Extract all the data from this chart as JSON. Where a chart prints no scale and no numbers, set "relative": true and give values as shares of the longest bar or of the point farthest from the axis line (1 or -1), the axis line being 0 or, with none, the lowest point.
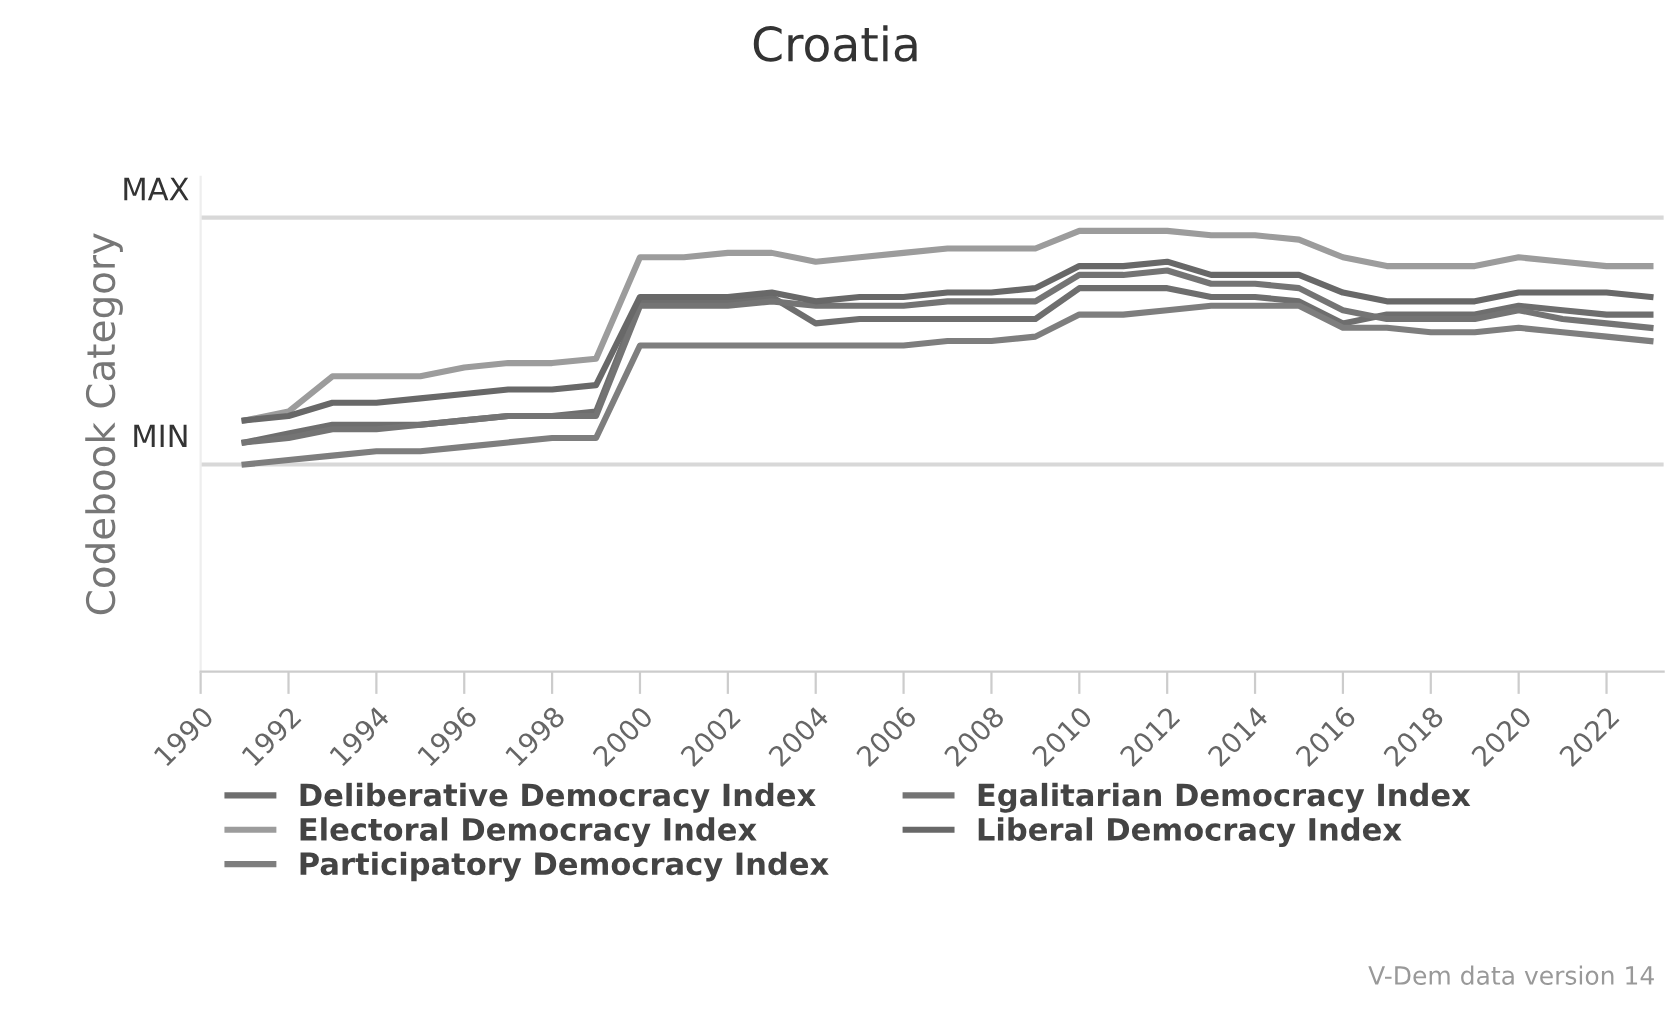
{
  "chart_data": {
    "type": "line",
    "title": "Croatia",
    "ylabel": "Codebook Category",
    "relative": true,
    "x": [
      1991,
      1992,
      1993,
      1994,
      1995,
      1996,
      1997,
      1998,
      1999,
      2000,
      2001,
      2002,
      2003,
      2004,
      2005,
      2006,
      2007,
      2008,
      2009,
      2010,
      2011,
      2012,
      2013,
      2014,
      2015,
      2016,
      2017,
      2018,
      2019,
      2020,
      2021,
      2022,
      2023
    ],
    "series": [
      {
        "name": "Deliberative Democracy Index",
        "color": "#6e6e6e",
        "values": [
          0.52,
          0.54,
          0.56,
          0.56,
          0.56,
          0.57,
          0.58,
          0.58,
          0.59,
          0.84,
          0.84,
          0.84,
          0.85,
          0.79,
          0.8,
          0.8,
          0.8,
          0.8,
          0.8,
          0.87,
          0.87,
          0.87,
          0.85,
          0.85,
          0.84,
          0.79,
          0.81,
          0.81,
          0.81,
          0.83,
          0.82,
          0.81,
          0.81
        ]
      },
      {
        "name": "Egalitarian Democracy Index",
        "color": "#747474",
        "values": [
          0.52,
          0.53,
          0.55,
          0.55,
          0.56,
          0.57,
          0.58,
          0.58,
          0.58,
          0.83,
          0.83,
          0.83,
          0.84,
          0.83,
          0.83,
          0.83,
          0.84,
          0.84,
          0.84,
          0.9,
          0.9,
          0.91,
          0.88,
          0.88,
          0.87,
          0.82,
          0.8,
          0.8,
          0.8,
          0.82,
          0.8,
          0.79,
          0.78
        ]
      },
      {
        "name": "Electoral Democracy Index",
        "color": "#9c9c9c",
        "values": [
          0.57,
          0.59,
          0.67,
          0.67,
          0.67,
          0.69,
          0.7,
          0.7,
          0.71,
          0.94,
          0.94,
          0.95,
          0.95,
          0.93,
          0.94,
          0.95,
          0.96,
          0.96,
          0.96,
          1.0,
          1.0,
          1.0,
          0.99,
          0.99,
          0.98,
          0.94,
          0.92,
          0.92,
          0.92,
          0.94,
          0.93,
          0.92,
          0.92
        ]
      },
      {
        "name": "Liberal Democracy Index",
        "color": "#686868",
        "values": [
          0.57,
          0.58,
          0.61,
          0.61,
          0.62,
          0.63,
          0.64,
          0.64,
          0.65,
          0.85,
          0.85,
          0.85,
          0.86,
          0.84,
          0.85,
          0.85,
          0.86,
          0.86,
          0.87,
          0.92,
          0.92,
          0.93,
          0.9,
          0.9,
          0.9,
          0.86,
          0.84,
          0.84,
          0.84,
          0.86,
          0.86,
          0.86,
          0.85
        ]
      },
      {
        "name": "Participatory Democracy Index",
        "color": "#7e7e7e",
        "values": [
          0.47,
          0.48,
          0.49,
          0.5,
          0.5,
          0.51,
          0.52,
          0.53,
          0.53,
          0.74,
          0.74,
          0.74,
          0.74,
          0.74,
          0.74,
          0.74,
          0.75,
          0.75,
          0.76,
          0.81,
          0.81,
          0.82,
          0.83,
          0.83,
          0.83,
          0.78,
          0.78,
          0.77,
          0.77,
          0.78,
          0.77,
          0.76,
          0.75
        ]
      }
    ],
    "ref_lines": [
      {
        "axis": "y",
        "value": 0.47,
        "label": "MIN",
        "color": "#d8d8d8"
      },
      {
        "axis": "y",
        "value": 1.03,
        "label": "MAX",
        "color": "#d8d8d8"
      }
    ],
    "xlim": [
      1990,
      2023.3
    ],
    "xticks": [
      1990,
      1992,
      1994,
      1996,
      1998,
      2000,
      2002,
      2004,
      2006,
      2008,
      2010,
      2012,
      2014,
      2016,
      2018,
      2020,
      2022
    ],
    "legend": "bottom",
    "line_style": "solid",
    "marker": "none",
    "annotations": [
      "V-Dem data version 14"
    ]
  }
}
